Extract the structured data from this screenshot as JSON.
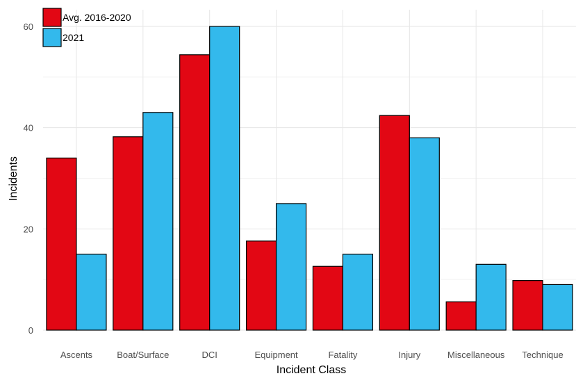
{
  "chart_data": {
    "type": "bar",
    "categories": [
      "Ascents",
      "Boat/Surface",
      "DCI",
      "Equipment",
      "Fatality",
      "Injury",
      "Miscellaneous",
      "Technique"
    ],
    "series": [
      {
        "name": "Avg. 2016-2020",
        "color": "#e20714",
        "values": [
          34,
          38.2,
          54.4,
          17.6,
          12.6,
          42.4,
          5.6,
          9.8
        ]
      },
      {
        "name": "2021",
        "color": "#33b9ec",
        "values": [
          15,
          43,
          60,
          25,
          15,
          38,
          13,
          9
        ]
      }
    ],
    "xlabel": "Incident Class",
    "ylabel": "Incidents",
    "yticks": [
      0,
      20,
      40,
      60
    ],
    "ylim": [
      0,
      60
    ],
    "grid": true,
    "legend": "top-left"
  }
}
